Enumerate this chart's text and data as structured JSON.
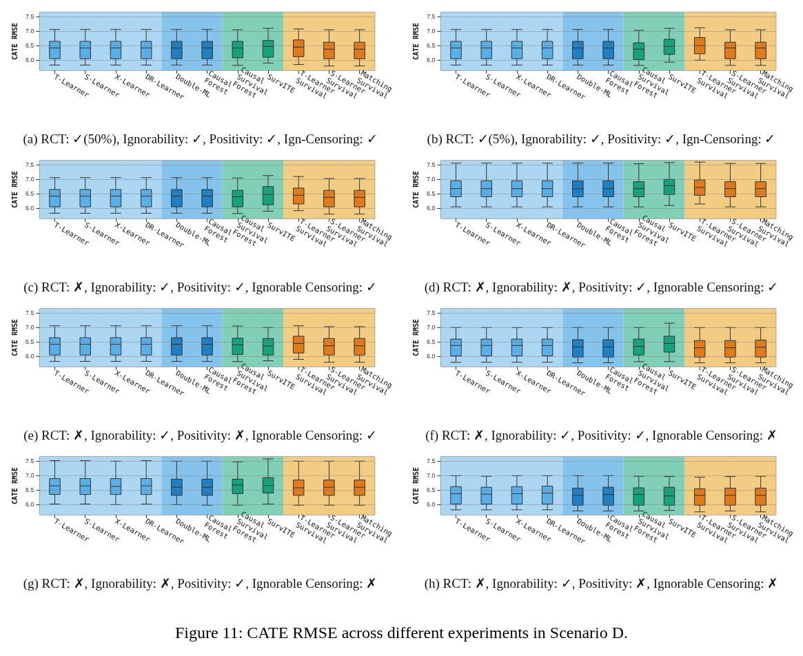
{
  "chart_data": [
    {
      "type": "box",
      "title": "(a) RCT: ✓(50%), Ignorability: ✓, Positivity: ✓, Ign-Censoring: ✓",
      "ylabel": "CATE RMSE",
      "categories": [
        "T-Learner",
        "S-Learner",
        "X-Learner",
        "DR-Learner",
        "Double-ML",
        "Causal\nForest",
        "Causal\nSurvival\nForest",
        "SurvITE",
        "T-Learner\nSurvival",
        "S-Learner\nSurvival",
        "Matching\nSurvival"
      ],
      "colors": [
        "#5aafe6",
        "#5aafe6",
        "#5aafe6",
        "#5aafe6",
        "#1f7fc2",
        "#1f7fc2",
        "#17a27a",
        "#17a27a",
        "#e07a1f",
        "#e07a1f",
        "#e07a1f"
      ],
      "ylim": [
        5.65,
        7.65
      ],
      "yticks": [
        {
          "value": 6,
          "label": "6.0"
        },
        {
          "value": 6.5,
          "label": "6.5"
        },
        {
          "value": 7,
          "label": "7.0"
        },
        {
          "value": 7.5,
          "label": "7.5"
        }
      ],
      "grid": "y",
      "bands": [
        {
          "axis": "x",
          "from": "T-Learner",
          "to": "DR-Learner",
          "color": "#acd6f2"
        },
        {
          "axis": "x",
          "from": "Double-ML",
          "to": "Causal\nForest",
          "color": "#86c3ec"
        },
        {
          "axis": "x",
          "from": "Causal\nSurvival\nForest",
          "to": "SurvITE",
          "color": "#80cfb6"
        },
        {
          "axis": "x",
          "from": "T-Learner\nSurvival",
          "to": "Matching\nSurvival",
          "color": "#f2cc82"
        }
      ],
      "boxes": [
        {
          "low": 5.83,
          "q1": 6.05,
          "median": 6.42,
          "q3": 6.65,
          "high": 7.06
        },
        {
          "low": 5.83,
          "q1": 6.05,
          "median": 6.42,
          "q3": 6.65,
          "high": 7.06
        },
        {
          "low": 5.83,
          "q1": 6.05,
          "median": 6.42,
          "q3": 6.65,
          "high": 7.06
        },
        {
          "low": 5.83,
          "q1": 6.05,
          "median": 6.42,
          "q3": 6.65,
          "high": 7.06
        },
        {
          "low": 5.83,
          "q1": 6.05,
          "median": 6.42,
          "q3": 6.65,
          "high": 7.06
        },
        {
          "low": 5.83,
          "q1": 6.05,
          "median": 6.42,
          "q3": 6.65,
          "high": 7.06
        },
        {
          "low": 5.82,
          "q1": 6.08,
          "median": 6.42,
          "q3": 6.65,
          "high": 7.05
        },
        {
          "low": 5.9,
          "q1": 6.1,
          "median": 6.47,
          "q3": 6.68,
          "high": 7.1
        },
        {
          "low": 5.85,
          "q1": 6.12,
          "median": 6.45,
          "q3": 6.7,
          "high": 7.08
        },
        {
          "low": 5.8,
          "q1": 6.05,
          "median": 6.38,
          "q3": 6.62,
          "high": 7.05
        },
        {
          "low": 5.8,
          "q1": 6.05,
          "median": 6.38,
          "q3": 6.62,
          "high": 7.05
        }
      ]
    },
    {
      "type": "box",
      "title": "(b) RCT: ✓(5%), Ignorability: ✓, Positivity: ✓, Ign-Censoring: ✓",
      "ylabel": "CATE RMSE",
      "categories": [
        "T-Learner",
        "S-Learner",
        "X-Learner",
        "DR-Learner",
        "Double-ML",
        "Causal\nForest",
        "Causal\nSurvival\nForest",
        "SurvITE",
        "T-Learner\nSurvival",
        "S-Learner\nSurvival",
        "Matching\nSurvival"
      ],
      "colors": [
        "#5aafe6",
        "#5aafe6",
        "#5aafe6",
        "#5aafe6",
        "#1f7fc2",
        "#1f7fc2",
        "#17a27a",
        "#17a27a",
        "#e07a1f",
        "#e07a1f",
        "#e07a1f"
      ],
      "ylim": [
        5.65,
        7.65
      ],
      "yticks": [
        {
          "value": 6,
          "label": "6.0"
        },
        {
          "value": 6.5,
          "label": "6.5"
        },
        {
          "value": 7,
          "label": "7.0"
        },
        {
          "value": 7.5,
          "label": "7.5"
        }
      ],
      "grid": "y",
      "bands": [
        {
          "axis": "x",
          "from": "T-Learner",
          "to": "DR-Learner",
          "color": "#acd6f2"
        },
        {
          "axis": "x",
          "from": "Double-ML",
          "to": "Causal\nForest",
          "color": "#86c3ec"
        },
        {
          "axis": "x",
          "from": "Causal\nSurvival\nForest",
          "to": "SurvITE",
          "color": "#80cfb6"
        },
        {
          "axis": "x",
          "from": "T-Learner\nSurvival",
          "to": "Matching\nSurvival",
          "color": "#f2cc82"
        }
      ],
      "boxes": [
        {
          "low": 5.83,
          "q1": 6.05,
          "median": 6.42,
          "q3": 6.65,
          "high": 7.06
        },
        {
          "low": 5.83,
          "q1": 6.05,
          "median": 6.42,
          "q3": 6.65,
          "high": 7.06
        },
        {
          "low": 5.83,
          "q1": 6.05,
          "median": 6.42,
          "q3": 6.65,
          "high": 7.06
        },
        {
          "low": 5.83,
          "q1": 6.05,
          "median": 6.42,
          "q3": 6.65,
          "high": 7.06
        },
        {
          "low": 5.83,
          "q1": 6.05,
          "median": 6.42,
          "q3": 6.65,
          "high": 7.06
        },
        {
          "low": 5.83,
          "q1": 6.05,
          "median": 6.42,
          "q3": 6.65,
          "high": 7.06
        },
        {
          "low": 5.82,
          "q1": 6.02,
          "median": 6.38,
          "q3": 6.6,
          "high": 7.03
        },
        {
          "low": 5.93,
          "q1": 6.2,
          "median": 6.48,
          "q3": 6.72,
          "high": 7.1
        },
        {
          "low": 6.0,
          "q1": 6.22,
          "median": 6.5,
          "q3": 6.78,
          "high": 7.12
        },
        {
          "low": 5.82,
          "q1": 6.05,
          "median": 6.42,
          "q3": 6.62,
          "high": 7.05
        },
        {
          "low": 5.82,
          "q1": 6.05,
          "median": 6.42,
          "q3": 6.62,
          "high": 7.05
        }
      ]
    },
    {
      "type": "box",
      "title": "(c) RCT: ✗, Ignorability: ✓, Positivity: ✓, Ignorable Censoring: ✓",
      "ylabel": "CATE RMSE",
      "categories": [
        "T-Learner",
        "S-Learner",
        "X-Learner",
        "DR-Learner",
        "Double-ML",
        "Causal\nForest",
        "Causal\nSurvival\nForest",
        "SurvITE",
        "T-Learner\nSurvival",
        "S-Learner\nSurvival",
        "Matching\nSurvival"
      ],
      "colors": [
        "#5aafe6",
        "#5aafe6",
        "#5aafe6",
        "#5aafe6",
        "#1f7fc2",
        "#1f7fc2",
        "#17a27a",
        "#17a27a",
        "#e07a1f",
        "#e07a1f",
        "#e07a1f"
      ],
      "ylim": [
        5.65,
        7.65
      ],
      "yticks": [
        {
          "value": 6,
          "label": "6.0"
        },
        {
          "value": 6.5,
          "label": "6.5"
        },
        {
          "value": 7,
          "label": "7.0"
        },
        {
          "value": 7.5,
          "label": "7.5"
        }
      ],
      "grid": "y",
      "bands": [
        {
          "axis": "x",
          "from": "T-Learner",
          "to": "DR-Learner",
          "color": "#acd6f2"
        },
        {
          "axis": "x",
          "from": "Double-ML",
          "to": "Causal\nForest",
          "color": "#86c3ec"
        },
        {
          "axis": "x",
          "from": "Causal\nSurvival\nForest",
          "to": "SurvITE",
          "color": "#80cfb6"
        },
        {
          "axis": "x",
          "from": "T-Learner\nSurvival",
          "to": "Matching\nSurvival",
          "color": "#f2cc82"
        }
      ],
      "boxes": [
        {
          "low": 5.83,
          "q1": 6.05,
          "median": 6.42,
          "q3": 6.65,
          "high": 7.06
        },
        {
          "low": 5.83,
          "q1": 6.05,
          "median": 6.42,
          "q3": 6.65,
          "high": 7.06
        },
        {
          "low": 5.83,
          "q1": 6.05,
          "median": 6.42,
          "q3": 6.65,
          "high": 7.06
        },
        {
          "low": 5.83,
          "q1": 6.05,
          "median": 6.42,
          "q3": 6.65,
          "high": 7.06
        },
        {
          "low": 5.83,
          "q1": 6.05,
          "median": 6.42,
          "q3": 6.65,
          "high": 7.06
        },
        {
          "low": 5.83,
          "q1": 6.05,
          "median": 6.42,
          "q3": 6.65,
          "high": 7.06
        },
        {
          "low": 5.82,
          "q1": 6.05,
          "median": 6.4,
          "q3": 6.62,
          "high": 7.05
        },
        {
          "low": 5.9,
          "q1": 6.12,
          "median": 6.48,
          "q3": 6.75,
          "high": 7.13
        },
        {
          "low": 5.92,
          "q1": 6.15,
          "median": 6.45,
          "q3": 6.7,
          "high": 7.1
        },
        {
          "low": 5.8,
          "q1": 6.05,
          "median": 6.38,
          "q3": 6.62,
          "high": 7.03
        },
        {
          "low": 5.8,
          "q1": 6.05,
          "median": 6.38,
          "q3": 6.62,
          "high": 7.03
        }
      ]
    },
    {
      "type": "box",
      "title": "(d) RCT: ✗, Ignorability: ✗, Positivity: ✓, Ignorable Censoring: ✓",
      "ylabel": "CATE RMSE",
      "categories": [
        "T-Learner",
        "S-Learner",
        "X-Learner",
        "DR-Learner",
        "Double-ML",
        "Causal\nForest",
        "Causal\nSurvival\nForest",
        "SurvITE",
        "T-Learner\nSurvival",
        "S-Learner\nSurvival",
        "Matching\nSurvival"
      ],
      "colors": [
        "#5aafe6",
        "#5aafe6",
        "#5aafe6",
        "#5aafe6",
        "#1f7fc2",
        "#1f7fc2",
        "#17a27a",
        "#17a27a",
        "#e07a1f",
        "#e07a1f",
        "#e07a1f"
      ],
      "ylim": [
        5.65,
        7.65
      ],
      "yticks": [
        {
          "value": 6,
          "label": "6.0"
        },
        {
          "value": 6.5,
          "label": "6.5"
        },
        {
          "value": 7,
          "label": "7.0"
        },
        {
          "value": 7.5,
          "label": "7.5"
        }
      ],
      "grid": "y",
      "bands": [
        {
          "axis": "x",
          "from": "T-Learner",
          "to": "DR-Learner",
          "color": "#acd6f2"
        },
        {
          "axis": "x",
          "from": "Double-ML",
          "to": "Causal\nForest",
          "color": "#86c3ec"
        },
        {
          "axis": "x",
          "from": "Causal\nSurvival\nForest",
          "to": "SurvITE",
          "color": "#80cfb6"
        },
        {
          "axis": "x",
          "from": "T-Learner\nSurvival",
          "to": "Matching\nSurvival",
          "color": "#f2cc82"
        }
      ],
      "boxes": [
        {
          "low": 6.05,
          "q1": 6.4,
          "median": 6.68,
          "q3": 6.95,
          "high": 7.56
        },
        {
          "low": 6.05,
          "q1": 6.4,
          "median": 6.68,
          "q3": 6.95,
          "high": 7.56
        },
        {
          "low": 6.05,
          "q1": 6.4,
          "median": 6.68,
          "q3": 6.95,
          "high": 7.56
        },
        {
          "low": 6.05,
          "q1": 6.4,
          "median": 6.68,
          "q3": 6.95,
          "high": 7.56
        },
        {
          "low": 6.05,
          "q1": 6.4,
          "median": 6.68,
          "q3": 6.95,
          "high": 7.56
        },
        {
          "low": 6.05,
          "q1": 6.4,
          "median": 6.68,
          "q3": 6.95,
          "high": 7.56
        },
        {
          "low": 6.05,
          "q1": 6.4,
          "median": 6.68,
          "q3": 6.92,
          "high": 7.54
        },
        {
          "low": 6.1,
          "q1": 6.48,
          "median": 6.78,
          "q3": 7.0,
          "high": 7.58
        },
        {
          "low": 6.15,
          "q1": 6.45,
          "median": 6.72,
          "q3": 6.98,
          "high": 7.6
        },
        {
          "low": 6.05,
          "q1": 6.4,
          "median": 6.68,
          "q3": 6.92,
          "high": 7.55
        },
        {
          "low": 6.05,
          "q1": 6.4,
          "median": 6.68,
          "q3": 6.92,
          "high": 7.55
        }
      ]
    },
    {
      "type": "box",
      "title": "(e) RCT: ✗, Ignorability: ✓, Positivity: ✗, Ignorable Censoring: ✓",
      "ylabel": "CATE RMSE",
      "categories": [
        "T-Learner",
        "S-Learner",
        "X-Learner",
        "DR-Learner",
        "Double-ML",
        "Causal\nForest",
        "Causal\nSurvival\nForest",
        "SurvITE",
        "T-Learner\nSurvival",
        "S-Learner\nSurvival",
        "Matching\nSurvival"
      ],
      "colors": [
        "#5aafe6",
        "#5aafe6",
        "#5aafe6",
        "#5aafe6",
        "#1f7fc2",
        "#1f7fc2",
        "#17a27a",
        "#17a27a",
        "#e07a1f",
        "#e07a1f",
        "#e07a1f"
      ],
      "ylim": [
        5.65,
        7.65
      ],
      "yticks": [
        {
          "value": 6,
          "label": "6.0"
        },
        {
          "value": 6.5,
          "label": "6.5"
        },
        {
          "value": 7,
          "label": "7.0"
        },
        {
          "value": 7.5,
          "label": "7.5"
        }
      ],
      "grid": "y",
      "bands": [
        {
          "axis": "x",
          "from": "T-Learner",
          "to": "DR-Learner",
          "color": "#acd6f2"
        },
        {
          "axis": "x",
          "from": "Double-ML",
          "to": "Causal\nForest",
          "color": "#86c3ec"
        },
        {
          "axis": "x",
          "from": "Causal\nSurvival\nForest",
          "to": "SurvITE",
          "color": "#80cfb6"
        },
        {
          "axis": "x",
          "from": "T-Learner\nSurvival",
          "to": "Matching\nSurvival",
          "color": "#f2cc82"
        }
      ],
      "boxes": [
        {
          "low": 5.83,
          "q1": 6.05,
          "median": 6.42,
          "q3": 6.65,
          "high": 7.06
        },
        {
          "low": 5.83,
          "q1": 6.05,
          "median": 6.42,
          "q3": 6.65,
          "high": 7.06
        },
        {
          "low": 5.83,
          "q1": 6.05,
          "median": 6.42,
          "q3": 6.65,
          "high": 7.06
        },
        {
          "low": 5.83,
          "q1": 6.05,
          "median": 6.42,
          "q3": 6.65,
          "high": 7.06
        },
        {
          "low": 5.83,
          "q1": 6.05,
          "median": 6.42,
          "q3": 6.65,
          "high": 7.06
        },
        {
          "low": 5.83,
          "q1": 6.05,
          "median": 6.42,
          "q3": 6.65,
          "high": 7.06
        },
        {
          "low": 5.82,
          "q1": 6.07,
          "median": 6.4,
          "q3": 6.63,
          "high": 7.05
        },
        {
          "low": 5.85,
          "q1": 6.05,
          "median": 6.36,
          "q3": 6.62,
          "high": 7.0
        },
        {
          "low": 5.9,
          "q1": 6.12,
          "median": 6.45,
          "q3": 6.7,
          "high": 7.06
        },
        {
          "low": 5.8,
          "q1": 6.05,
          "median": 6.37,
          "q3": 6.62,
          "high": 7.03
        },
        {
          "low": 5.8,
          "q1": 6.05,
          "median": 6.37,
          "q3": 6.62,
          "high": 7.03
        }
      ]
    },
    {
      "type": "box",
      "title": "(f) RCT: ✗, Ignorability: ✓, Positivity: ✓, Ignorable Censoring: ✗",
      "ylabel": "CATE RMSE",
      "categories": [
        "T-Learner",
        "S-Learner",
        "X-Learner",
        "DR-Learner",
        "Double-ML",
        "Causal\nForest",
        "Causal\nSurvival\nForest",
        "SurvITE",
        "T-Learner\nSurvival",
        "S-Learner\nSurvival",
        "Matching\nSurvival"
      ],
      "colors": [
        "#5aafe6",
        "#5aafe6",
        "#5aafe6",
        "#5aafe6",
        "#1f7fc2",
        "#1f7fc2",
        "#17a27a",
        "#17a27a",
        "#e07a1f",
        "#e07a1f",
        "#e07a1f"
      ],
      "ylim": [
        5.65,
        7.65
      ],
      "yticks": [
        {
          "value": 6,
          "label": "6.0"
        },
        {
          "value": 6.5,
          "label": "6.5"
        },
        {
          "value": 7,
          "label": "7.0"
        },
        {
          "value": 7.5,
          "label": "7.5"
        }
      ],
      "grid": "y",
      "bands": [
        {
          "axis": "x",
          "from": "T-Learner",
          "to": "DR-Learner",
          "color": "#acd6f2"
        },
        {
          "axis": "x",
          "from": "Double-ML",
          "to": "Causal\nForest",
          "color": "#86c3ec"
        },
        {
          "axis": "x",
          "from": "Causal\nSurvival\nForest",
          "to": "SurvITE",
          "color": "#80cfb6"
        },
        {
          "axis": "x",
          "from": "T-Learner\nSurvival",
          "to": "Matching\nSurvival",
          "color": "#f2cc82"
        }
      ],
      "boxes": [
        {
          "low": 5.8,
          "q1": 6.02,
          "median": 6.38,
          "q3": 6.6,
          "high": 7.0
        },
        {
          "low": 5.8,
          "q1": 6.02,
          "median": 6.38,
          "q3": 6.6,
          "high": 7.0
        },
        {
          "low": 5.8,
          "q1": 6.02,
          "median": 6.38,
          "q3": 6.6,
          "high": 7.0
        },
        {
          "low": 5.8,
          "q1": 6.02,
          "median": 6.38,
          "q3": 6.6,
          "high": 7.0
        },
        {
          "low": 5.78,
          "q1": 5.98,
          "median": 6.33,
          "q3": 6.58,
          "high": 7.0
        },
        {
          "low": 5.78,
          "q1": 5.98,
          "median": 6.33,
          "q3": 6.58,
          "high": 7.0
        },
        {
          "low": 5.82,
          "q1": 6.05,
          "median": 6.35,
          "q3": 6.6,
          "high": 7.0
        },
        {
          "low": 5.82,
          "q1": 6.15,
          "median": 6.45,
          "q3": 6.7,
          "high": 7.15
        },
        {
          "low": 5.78,
          "q1": 5.98,
          "median": 6.3,
          "q3": 6.55,
          "high": 7.0
        },
        {
          "low": 5.78,
          "q1": 5.98,
          "median": 6.3,
          "q3": 6.55,
          "high": 7.0
        },
        {
          "low": 5.78,
          "q1": 5.98,
          "median": 6.32,
          "q3": 6.57,
          "high": 7.0
        }
      ]
    },
    {
      "type": "box",
      "title": "(g) RCT: ✗, Ignorability: ✗, Positivity: ✓, Ignorable Censoring: ✗",
      "ylabel": "CATE RMSE",
      "categories": [
        "T-Learner",
        "S-Learner",
        "X-Learner",
        "DR-Learner",
        "Double-ML",
        "Causal\nForest",
        "Causal\nSurvival\nForest",
        "SurvITE",
        "T-Learner\nSurvival",
        "S-Learner\nSurvival",
        "Matching\nSurvival"
      ],
      "colors": [
        "#5aafe6",
        "#5aafe6",
        "#5aafe6",
        "#5aafe6",
        "#1f7fc2",
        "#1f7fc2",
        "#17a27a",
        "#17a27a",
        "#e07a1f",
        "#e07a1f",
        "#e07a1f"
      ],
      "ylim": [
        5.65,
        7.65
      ],
      "yticks": [
        {
          "value": 6,
          "label": "6.0"
        },
        {
          "value": 6.5,
          "label": "6.5"
        },
        {
          "value": 7,
          "label": "7.0"
        },
        {
          "value": 7.5,
          "label": "7.5"
        }
      ],
      "grid": "y",
      "bands": [
        {
          "axis": "x",
          "from": "T-Learner",
          "to": "DR-Learner",
          "color": "#acd6f2"
        },
        {
          "axis": "x",
          "from": "Double-ML",
          "to": "Causal\nForest",
          "color": "#86c3ec"
        },
        {
          "axis": "x",
          "from": "Causal\nSurvival\nForest",
          "to": "SurvITE",
          "color": "#80cfb6"
        },
        {
          "axis": "x",
          "from": "T-Learner\nSurvival",
          "to": "Matching\nSurvival",
          "color": "#f2cc82"
        }
      ],
      "boxes": [
        {
          "low": 6.02,
          "q1": 6.35,
          "median": 6.65,
          "q3": 6.9,
          "high": 7.52
        },
        {
          "low": 6.02,
          "q1": 6.35,
          "median": 6.65,
          "q3": 6.9,
          "high": 7.52
        },
        {
          "low": 6.0,
          "q1": 6.35,
          "median": 6.63,
          "q3": 6.9,
          "high": 7.5
        },
        {
          "low": 6.02,
          "q1": 6.35,
          "median": 6.65,
          "q3": 6.9,
          "high": 7.52
        },
        {
          "low": 6.0,
          "q1": 6.32,
          "median": 6.6,
          "q3": 6.88,
          "high": 7.5
        },
        {
          "low": 5.98,
          "q1": 6.32,
          "median": 6.6,
          "q3": 6.88,
          "high": 7.5
        },
        {
          "low": 5.98,
          "q1": 6.38,
          "median": 6.68,
          "q3": 6.88,
          "high": 7.48
        },
        {
          "low": 6.02,
          "q1": 6.4,
          "median": 6.66,
          "q3": 6.93,
          "high": 7.58
        },
        {
          "low": 5.98,
          "q1": 6.32,
          "median": 6.58,
          "q3": 6.85,
          "high": 7.5
        },
        {
          "low": 5.98,
          "q1": 6.32,
          "median": 6.6,
          "q3": 6.85,
          "high": 7.5
        },
        {
          "low": 5.98,
          "q1": 6.32,
          "median": 6.6,
          "q3": 6.85,
          "high": 7.5
        }
      ]
    },
    {
      "type": "box",
      "title": "(h) RCT: ✗, Ignorability: ✓, Positivity: ✗, Ignorable Censoring: ✗",
      "ylabel": "CATE RMSE",
      "annotations": [
        "Figure 11: CATE RMSE across different experiments in Scenario D."
      ],
      "categories": [
        "T-Learner",
        "S-Learner",
        "X-Learner",
        "DR-Learner",
        "Double-ML",
        "Causal\nForest",
        "Causal\nSurvival\nForest",
        "SurvITE",
        "T-Learner\nSurvival",
        "S-Learner\nSurvival",
        "Matching\nSurvival"
      ],
      "colors": [
        "#5aafe6",
        "#5aafe6",
        "#5aafe6",
        "#5aafe6",
        "#1f7fc2",
        "#1f7fc2",
        "#17a27a",
        "#17a27a",
        "#e07a1f",
        "#e07a1f",
        "#e07a1f"
      ],
      "ylim": [
        5.65,
        7.65
      ],
      "yticks": [
        {
          "value": 6,
          "label": "6.0"
        },
        {
          "value": 6.5,
          "label": "6.5"
        },
        {
          "value": 7,
          "label": "7.0"
        },
        {
          "value": 7.5,
          "label": "7.5"
        }
      ],
      "grid": "y",
      "bands": [
        {
          "axis": "x",
          "from": "T-Learner",
          "to": "DR-Learner",
          "color": "#acd6f2"
        },
        {
          "axis": "x",
          "from": "Double-ML",
          "to": "Causal\nForest",
          "color": "#86c3ec"
        },
        {
          "axis": "x",
          "from": "Causal\nSurvival\nForest",
          "to": "SurvITE",
          "color": "#80cfb6"
        },
        {
          "axis": "x",
          "from": "T-Learner\nSurvival",
          "to": "Matching\nSurvival",
          "color": "#f2cc82"
        }
      ],
      "boxes": [
        {
          "low": 5.82,
          "q1": 6.02,
          "median": 6.38,
          "q3": 6.62,
          "high": 7.0
        },
        {
          "low": 5.82,
          "q1": 6.02,
          "median": 6.36,
          "q3": 6.6,
          "high": 6.98
        },
        {
          "low": 5.82,
          "q1": 6.02,
          "median": 6.38,
          "q3": 6.62,
          "high": 7.0
        },
        {
          "low": 5.82,
          "q1": 6.02,
          "median": 6.4,
          "q3": 6.64,
          "high": 7.0
        },
        {
          "low": 5.78,
          "q1": 5.98,
          "median": 6.32,
          "q3": 6.57,
          "high": 7.0
        },
        {
          "low": 5.78,
          "q1": 5.98,
          "median": 6.35,
          "q3": 6.6,
          "high": 7.0
        },
        {
          "low": 5.78,
          "q1": 5.98,
          "median": 6.35,
          "q3": 6.58,
          "high": 6.98
        },
        {
          "low": 5.8,
          "q1": 5.98,
          "median": 6.3,
          "q3": 6.6,
          "high": 6.97
        },
        {
          "low": 5.75,
          "q1": 5.98,
          "median": 6.32,
          "q3": 6.55,
          "high": 6.95
        },
        {
          "low": 5.78,
          "q1": 5.98,
          "median": 6.32,
          "q3": 6.57,
          "high": 6.97
        },
        {
          "low": 5.75,
          "q1": 5.98,
          "median": 6.32,
          "q3": 6.57,
          "high": 6.98
        }
      ]
    }
  ]
}
